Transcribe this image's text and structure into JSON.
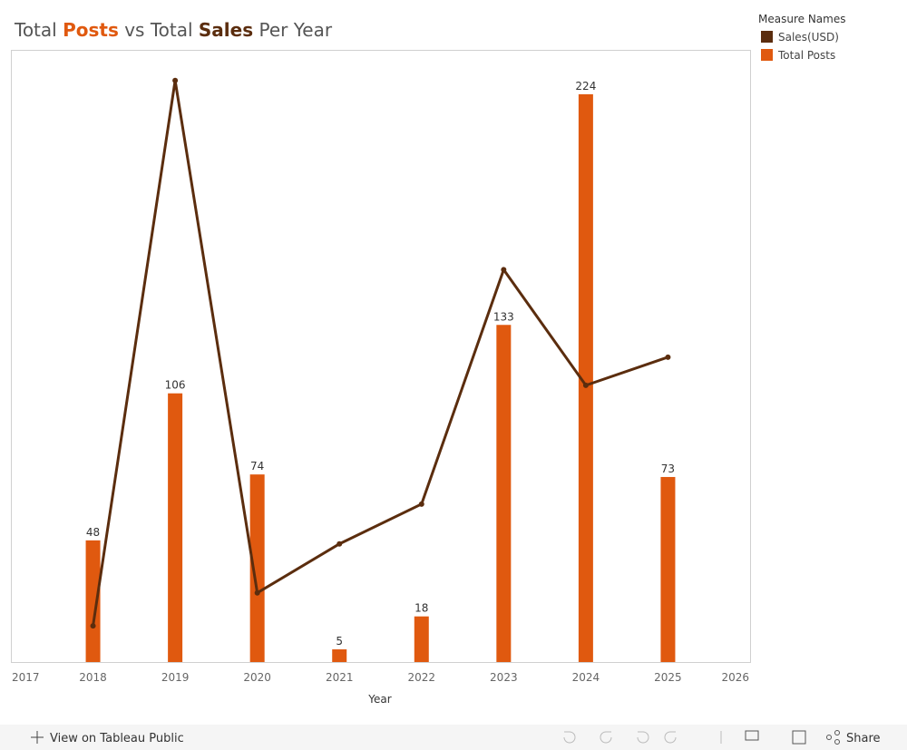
{
  "chart_data": {
    "type": "combo",
    "title": [
      {
        "text": "Total ",
        "color": "#555555"
      },
      {
        "text": "Posts",
        "color": "#e0590f",
        "bold": true
      },
      {
        "text": " vs Total ",
        "color": "#555555"
      },
      {
        "text": "Sales",
        "color": "#5b2d0e",
        "bold": true
      },
      {
        "text": " Per Year",
        "color": "#555555"
      }
    ],
    "x_label": "Year",
    "x": [
      2018,
      2019,
      2020,
      2021,
      2022,
      2023,
      2024,
      2025
    ],
    "xlim": [
      2017,
      2026
    ],
    "xticks": [
      2017,
      2018,
      2019,
      2020,
      2021,
      2022,
      2023,
      2024,
      2025,
      2026
    ],
    "ylim": [
      0,
      241.5
    ],
    "y2lim": [
      0,
      100
    ],
    "legend_title": "Measure Names",
    "legend": "right",
    "series": [
      {
        "name": "Sales(USD)",
        "type": "line",
        "axis": "y2",
        "color": "#5b2d0e",
        "values": [
          5.9,
          95.0,
          11.3,
          19.3,
          25.8,
          64.1,
          45.2,
          49.8
        ]
      },
      {
        "name": "Total Posts",
        "type": "bar",
        "color": "#e0590f",
        "values": [
          48,
          106,
          74,
          5,
          18,
          133,
          224,
          73
        ]
      }
    ]
  },
  "toolbar": {
    "view_link": "View on Tableau Public",
    "share": "Share"
  }
}
